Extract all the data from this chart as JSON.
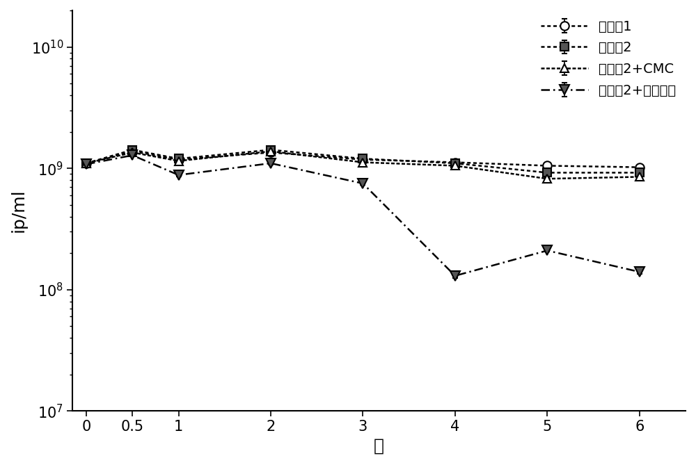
{
  "x": [
    0,
    0.5,
    1,
    2,
    3,
    4,
    5,
    6
  ],
  "series": [
    {
      "label": "配制剂1",
      "y": [
        1100000000.0,
        1380000000.0,
        1180000000.0,
        1350000000.0,
        1180000000.0,
        1120000000.0,
        1050000000.0,
        1020000000.0
      ],
      "yerr": [
        0,
        30000000.0,
        30000000.0,
        30000000.0,
        30000000.0,
        20000000.0,
        20000000.0,
        20000000.0
      ],
      "marker": "o",
      "marker_fill": "white",
      "linestyle": "dense_dot",
      "color": "black",
      "markersize": 9,
      "linewidth": 1.8
    },
    {
      "label": "配制剂2",
      "y": [
        1100000000.0,
        1420000000.0,
        1200000000.0,
        1420000000.0,
        1200000000.0,
        1100000000.0,
        920000000.0,
        920000000.0
      ],
      "yerr": [
        0,
        30000000.0,
        30000000.0,
        30000000.0,
        30000000.0,
        20000000.0,
        20000000.0,
        20000000.0
      ],
      "marker": "s",
      "marker_fill": "hatched",
      "linestyle": "dense_dot",
      "color": "black",
      "markersize": 9,
      "linewidth": 1.8
    },
    {
      "label": "配制剂2+CMC",
      "y": [
        1100000000.0,
        1350000000.0,
        1150000000.0,
        1380000000.0,
        1120000000.0,
        1050000000.0,
        820000000.0,
        850000000.0
      ],
      "yerr": [
        0,
        30000000.0,
        30000000.0,
        30000000.0,
        30000000.0,
        20000000.0,
        20000000.0,
        20000000.0
      ],
      "marker": "^",
      "marker_fill": "white",
      "linestyle": "dense_dot2",
      "color": "black",
      "markersize": 9,
      "linewidth": 1.8
    },
    {
      "label": "配制剂2+普朗尼克",
      "y": [
        1080000000.0,
        1280000000.0,
        880000000.0,
        1100000000.0,
        750000000.0,
        130000000.0,
        210000000.0,
        140000000.0
      ],
      "yerr": [
        0,
        30000000.0,
        30000000.0,
        30000000.0,
        20000000.0,
        5000000.0,
        5000000.0,
        5000000.0
      ],
      "marker": "v",
      "marker_fill": "hatched",
      "linestyle": "dot_dash",
      "color": "black",
      "markersize": 10,
      "linewidth": 1.8
    }
  ],
  "xlabel": "月",
  "ylabel": "ip/ml",
  "xlim": [
    -0.15,
    6.5
  ],
  "ylim": [
    10000000.0,
    20000000000.0
  ],
  "xticks": [
    0,
    0.5,
    1,
    2,
    3,
    4,
    5,
    6
  ],
  "xtick_labels": [
    "0",
    "0.5",
    "1",
    "2",
    "3",
    "4",
    "5",
    "6"
  ],
  "background_color": "#ffffff",
  "label_fontsize": 18,
  "tick_fontsize": 15,
  "legend_fontsize": 14
}
